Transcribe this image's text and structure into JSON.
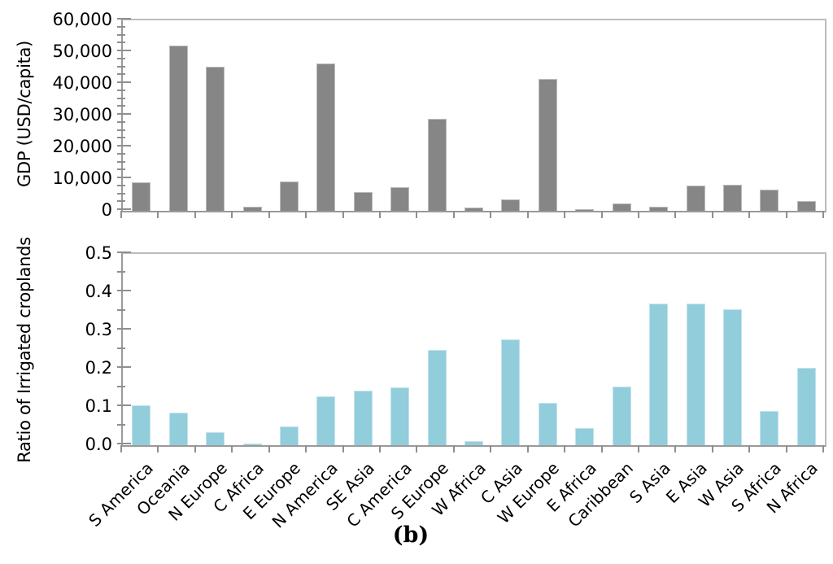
{
  "caption": "(b)",
  "colors": {
    "gdp_bar": "#868686",
    "ratio_bar": "#92cdDC",
    "axis_line": "#9a9a9a",
    "frame_line": "#bcbcbc",
    "tick": "#8f8f8f",
    "text": "#000000"
  },
  "chart_data": [
    {
      "type": "bar",
      "title": "",
      "xlabel": "",
      "ylabel": "GDP (USD/capita)",
      "grid": false,
      "legend_position": "none",
      "categories": [
        "S America",
        "Oceania",
        "N Europe",
        "C Africa",
        "E Europe",
        "N America",
        "SE Asia",
        "C America",
        "S Europe",
        "W Africa",
        "C Asia",
        "W Europe",
        "E Africa",
        "Caribbean",
        "S Asia",
        "E Asia",
        "W Asia",
        "S Africa",
        "N Africa"
      ],
      "values": [
        9000,
        52000,
        45500,
        1200,
        9300,
        46500,
        6000,
        7400,
        29000,
        1000,
        3600,
        41500,
        500,
        2300,
        1300,
        8000,
        8100,
        6600,
        3000
      ],
      "ylim": [
        0,
        60000
      ],
      "yticks": [
        {
          "label": "0",
          "value": 0
        },
        {
          "label": "10,000",
          "value": 10000
        },
        {
          "label": "20,000",
          "value": 20000
        },
        {
          "label": "30,000",
          "value": 30000
        },
        {
          "label": "40,000",
          "value": 40000
        },
        {
          "label": "50,000",
          "value": 50000
        },
        {
          "label": "60,000",
          "value": 60000
        }
      ],
      "minor_tick_step": 2500,
      "bar_color_key": "gdp_bar",
      "show_x_labels": false
    },
    {
      "type": "bar",
      "title": "",
      "xlabel": "",
      "ylabel": "Ratio of Irrigated croplands",
      "grid": false,
      "legend_position": "none",
      "categories": [
        "S America",
        "Oceania",
        "N Europe",
        "C Africa",
        "E Europe",
        "N America",
        "SE Asia",
        "C America",
        "S Europe",
        "W Africa",
        "C Asia",
        "W Europe",
        "E Africa",
        "Caribbean",
        "S Asia",
        "E Asia",
        "W Asia",
        "S Africa",
        "N Africa"
      ],
      "values": [
        0.105,
        0.085,
        0.035,
        0.005,
        0.05,
        0.128,
        0.143,
        0.151,
        0.25,
        0.01,
        0.276,
        0.11,
        0.045,
        0.154,
        0.371,
        0.371,
        0.356,
        0.09,
        0.203
      ],
      "ylim": [
        0,
        0.5
      ],
      "yticks": [
        {
          "label": "0.0",
          "value": 0
        },
        {
          "label": "0.1",
          "value": 0.1
        },
        {
          "label": "0.2",
          "value": 0.2
        },
        {
          "label": "0.3",
          "value": 0.3
        },
        {
          "label": "0.4",
          "value": 0.4
        },
        {
          "label": "0.5",
          "value": 0.5
        }
      ],
      "minor_tick_step": 0.05,
      "bar_color_key": "ratio_bar",
      "show_x_labels": true
    }
  ]
}
